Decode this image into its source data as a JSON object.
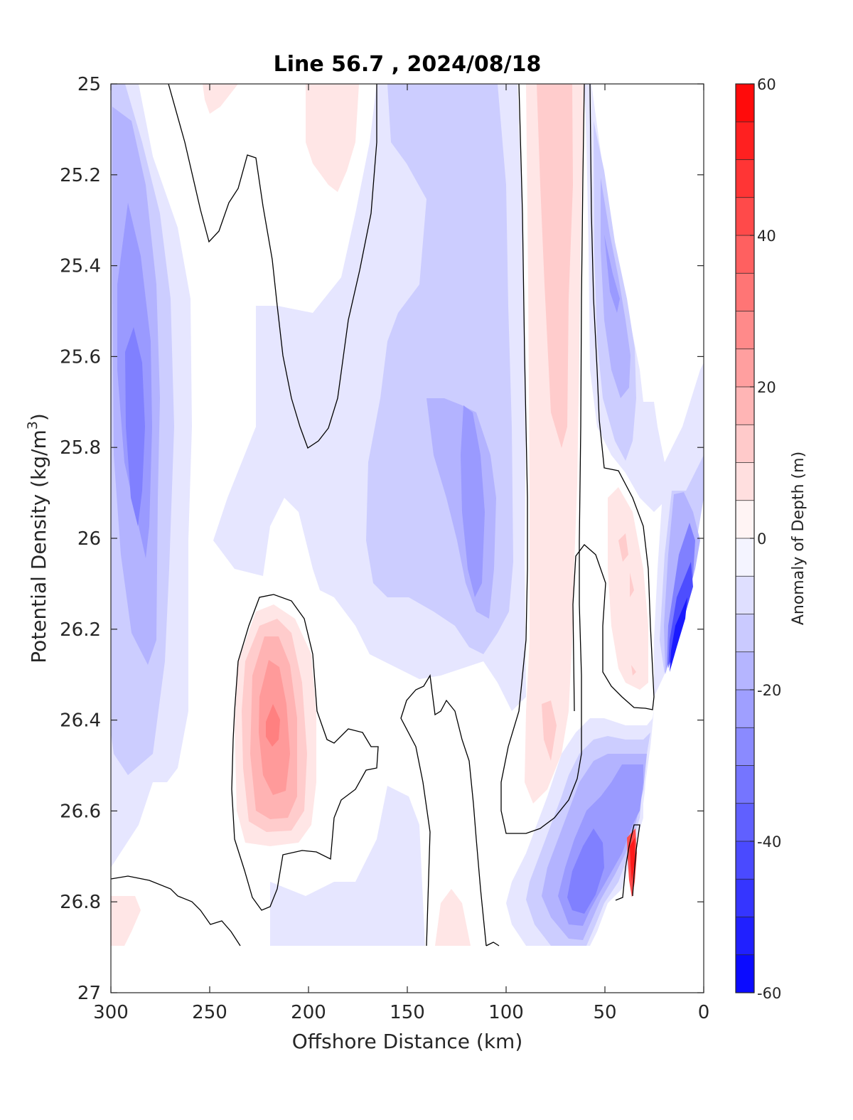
{
  "chart_data": {
    "type": "contour",
    "title": "Line 56.7 , 2024/08/18",
    "xlabel": "Offshore Distance (km)",
    "ylabel_main": "Potential Density (kg/m",
    "ylabel_sup": "3",
    "ylabel_close": ")",
    "xlim": [
      300,
      0
    ],
    "ylim": [
      25,
      27
    ],
    "x_reversed": true,
    "y_reversed": true,
    "xticks": [
      "300",
      "250",
      "200",
      "150",
      "100",
      "50",
      "0"
    ],
    "yticks": [
      "25",
      "25.2",
      "25.4",
      "25.6",
      "25.8",
      "26",
      "26.2",
      "26.4",
      "26.6",
      "26.8",
      "27"
    ],
    "colorbar": {
      "label": "Anomaly of Depth (m)",
      "range": [
        -60,
        60
      ],
      "ticks": [
        "60",
        "40",
        "20",
        "0",
        "-20",
        "-40",
        "-60"
      ],
      "levels": 24,
      "colors": {
        "negative": "#0000ff",
        "zero": "#ffffff",
        "positive": "#ff0000"
      }
    },
    "zero_contour_color": "#000000",
    "features": [
      {
        "x_range": [
          300,
          265
        ],
        "y_range": [
          25.05,
          26.55
        ],
        "sign": "negative",
        "peak": -30
      },
      {
        "x_range": [
          225,
          205
        ],
        "y_range": [
          26.15,
          26.8
        ],
        "sign": "positive",
        "peak": 25
      },
      {
        "x_range": [
          165,
          95
        ],
        "y_range": [
          25.0,
          26.2
        ],
        "sign": "negative",
        "peak": -20
      },
      {
        "x_range": [
          90,
          60
        ],
        "y_range": [
          25.0,
          26.6
        ],
        "sign": "positive",
        "peak": 15
      },
      {
        "x_range": [
          60,
          30
        ],
        "y_range": [
          26.45,
          26.9
        ],
        "sign": "negative",
        "peak": -35
      },
      {
        "x_range": [
          20,
          5
        ],
        "y_range": [
          25.9,
          26.3
        ],
        "sign": "negative",
        "peak": -50
      },
      {
        "x_range": [
          37,
          34
        ],
        "y_range": [
          26.65,
          26.78
        ],
        "sign": "positive",
        "peak": 45
      }
    ]
  }
}
